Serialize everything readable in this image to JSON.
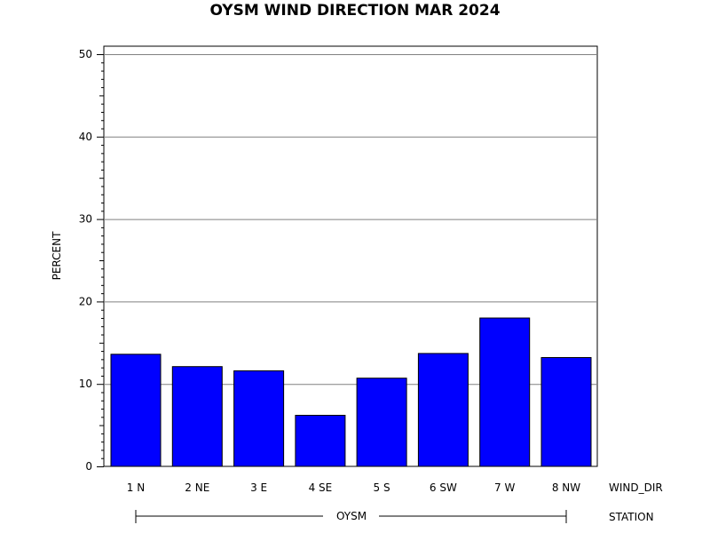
{
  "chart_data": {
    "type": "bar",
    "title": "OYSM WIND DIRECTION MAR 2024",
    "ylabel": "PERCENT",
    "xlabel": "WIND_DIR",
    "group_label": "STATION",
    "group_value": "OYSM",
    "categories": [
      "1 N",
      "2 NE",
      "3 E",
      "4 SE",
      "5 S",
      "6 SW",
      "7 W",
      "8 NW"
    ],
    "values": [
      13.6,
      12.1,
      11.6,
      6.2,
      10.7,
      13.7,
      18.0,
      13.2
    ],
    "ylim": [
      0,
      50
    ],
    "yticks": [
      0,
      10,
      20,
      30,
      40,
      50
    ],
    "grid": true,
    "bar_color": "#0000ff",
    "bar_edge_color": "#000000"
  }
}
